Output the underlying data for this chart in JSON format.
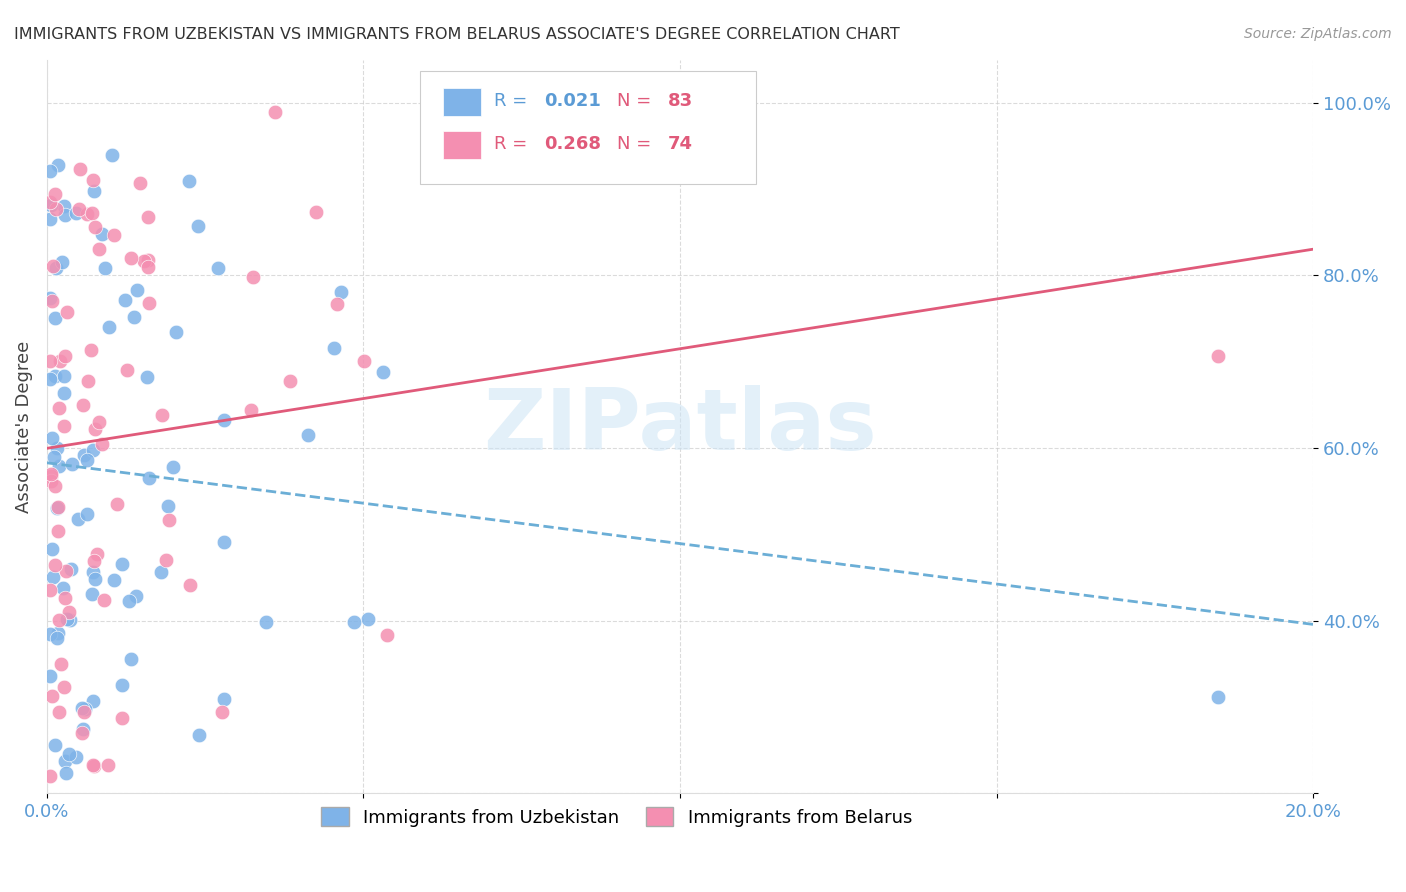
{
  "title": "IMMIGRANTS FROM UZBEKISTAN VS IMMIGRANTS FROM BELARUS ASSOCIATE'S DEGREE CORRELATION CHART",
  "source": "Source: ZipAtlas.com",
  "ylabel": "Associate's Degree",
  "xlim": [
    0.0,
    0.2
  ],
  "ylim": [
    0.2,
    1.05
  ],
  "xticks": [
    0.0,
    0.05,
    0.1,
    0.15,
    0.2
  ],
  "xtick_labels": [
    "0.0%",
    "",
    "",
    "",
    "20.0%"
  ],
  "yticks": [
    0.2,
    0.4,
    0.6,
    0.8,
    1.0
  ],
  "ytick_labels": [
    "",
    "40.0%",
    "60.0%",
    "80.0%",
    "100.0%"
  ],
  "legend_r_uzbekistan": "0.021",
  "legend_n_uzbekistan": "83",
  "legend_r_belarus": "0.268",
  "legend_n_belarus": "74",
  "color_uzbekistan": "#7fb3e8",
  "color_belarus": "#f48fb1",
  "trend_color_uzbekistan": "#6baed6",
  "trend_color_belarus": "#e05a7a",
  "watermark": "ZIPatlas",
  "background_color": "#ffffff",
  "grid_color": "#cccccc",
  "axis_color": "#5b9bd5"
}
